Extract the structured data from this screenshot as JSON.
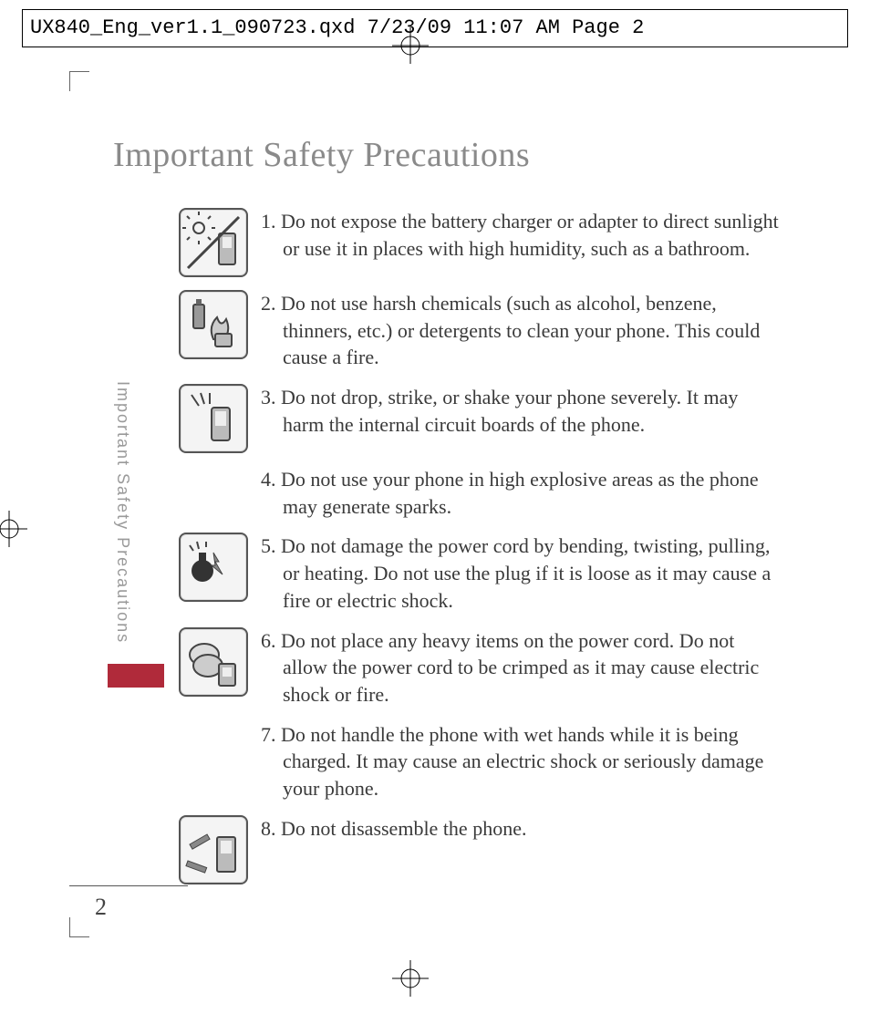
{
  "header": {
    "slug": "UX840_Eng_ver1.1_090723.qxd  7/23/09  11:07 AM  Page 2"
  },
  "title": "Important Safety Precautions",
  "side_label": "Important Safety Precautions",
  "page_number": "2",
  "colors": {
    "title_color": "#8a8a8a",
    "body_color": "#3a3a3a",
    "side_accent": "#b02a3a",
    "side_label_color": "#9a9a9a",
    "icon_border": "#555555",
    "icon_bg": "#f4f4f4",
    "background": "#ffffff"
  },
  "typography": {
    "title_fontsize": 38,
    "body_fontsize": 22,
    "side_fontsize": 18,
    "pagenum_fontsize": 26,
    "header_fontsize": 22,
    "header_font": "Courier New",
    "body_font": "Georgia"
  },
  "items": [
    {
      "has_icon": true,
      "icon_name": "sunlight-humidity-icon",
      "text": "1. Do not expose the battery charger or adapter to direct sunlight or use it in places with high humidity, such as a bathroom."
    },
    {
      "has_icon": true,
      "icon_name": "chemicals-fire-icon",
      "text": "2. Do not use harsh chemicals (such as alcohol, benzene, thinners, etc.) or detergents to clean your phone. This could cause a fire."
    },
    {
      "has_icon": true,
      "icon_name": "drop-impact-icon",
      "text": "3. Do not drop, strike, or shake your phone severely. It may harm the internal circuit boards of the phone."
    },
    {
      "has_icon": false,
      "icon_name": "",
      "text": "4. Do not use your phone in high explosive areas as the phone may generate sparks."
    },
    {
      "has_icon": true,
      "icon_name": "power-cord-damage-icon",
      "text": "5. Do not damage the power cord by bending, twisting, pulling, or heating. Do not use the plug if it is loose as it may cause a fire or electric shock."
    },
    {
      "has_icon": true,
      "icon_name": "heavy-item-cord-icon",
      "text": "6. Do not place any heavy items on the power cord. Do not allow the power cord to be crimped as it may cause electric shock or fire."
    },
    {
      "has_icon": false,
      "icon_name": "",
      "text": "7.  Do not handle the phone with wet hands while it is being charged. It may cause an electric shock or seriously damage your phone."
    },
    {
      "has_icon": true,
      "icon_name": "disassemble-icon",
      "text": "8. Do not disassemble the phone."
    }
  ]
}
